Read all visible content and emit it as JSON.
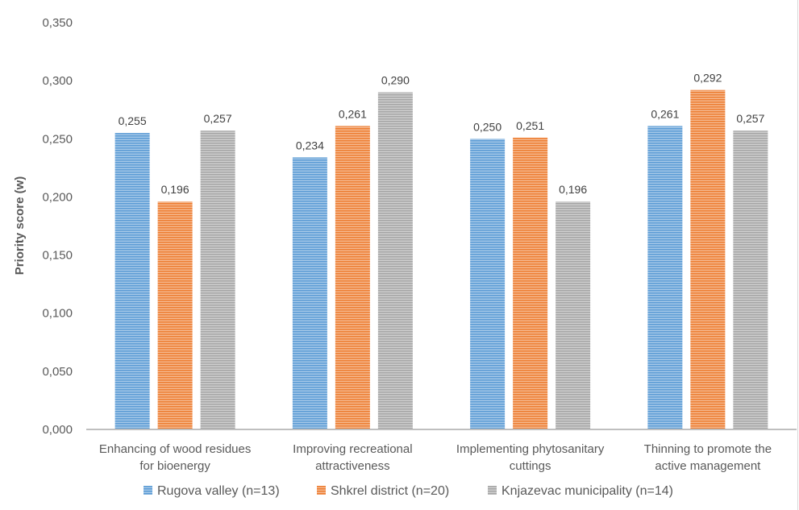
{
  "chart_data": {
    "type": "bar",
    "title": "",
    "xlabel": "",
    "ylabel": "Priority score (w)",
    "ylim": [
      0,
      0.35
    ],
    "yticks": [
      0,
      0.05,
      0.1,
      0.15,
      0.2,
      0.25,
      0.3,
      0.35
    ],
    "ytick_labels": [
      "0,000",
      "0,050",
      "0,100",
      "0,150",
      "0,200",
      "0,250",
      "0,300",
      "0,350"
    ],
    "grid": false,
    "legend_position": "bottom",
    "categories": [
      [
        "Enhancing of wood residues",
        "for bioenergy"
      ],
      [
        "Improving recreational",
        "attractiveness"
      ],
      [
        "Implementing phytosanitary",
        "cuttings"
      ],
      [
        "Thinning to promote the",
        "active management"
      ]
    ],
    "series": [
      {
        "name": "Rugova valley (n=13)",
        "color": "#5b9bd5",
        "values": [
          0.255,
          0.234,
          0.25,
          0.261
        ],
        "labels": [
          "0,255",
          "0,234",
          "0,250",
          "0,261"
        ]
      },
      {
        "name": "Shkrel district (n=20)",
        "color": "#ed7d31",
        "values": [
          0.196,
          0.261,
          0.251,
          0.292
        ],
        "labels": [
          "0,196",
          "0,261",
          "0,251",
          "0,292"
        ]
      },
      {
        "name": "Knjazevac municipality (n=14)",
        "color": "#a5a5a5",
        "values": [
          0.257,
          0.29,
          0.196,
          0.257
        ],
        "labels": [
          "0,257",
          "0,290",
          "0,196",
          "0,257"
        ]
      }
    ],
    "bar_pattern": "horizontal-stripes"
  }
}
